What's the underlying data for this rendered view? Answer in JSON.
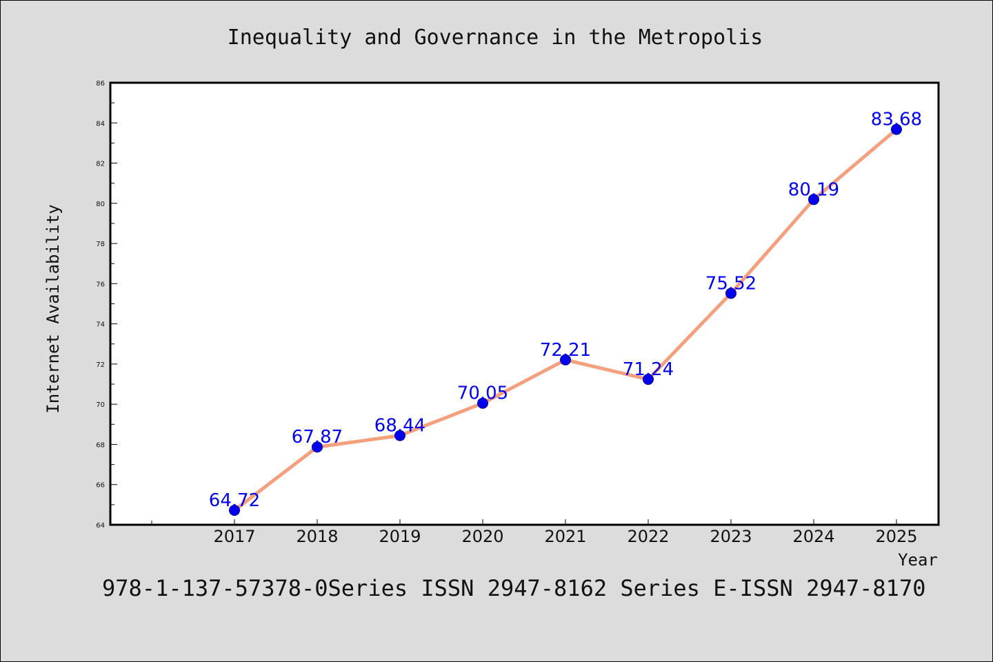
{
  "chart_data": {
    "type": "line",
    "title": "Inequality and Governance in the Metropolis",
    "xlabel": "Year",
    "ylabel": "Internet Availability",
    "categories": [
      "2017",
      "2018",
      "2019",
      "2020",
      "2021",
      "2022",
      "2023",
      "2024",
      "2025"
    ],
    "series": [
      {
        "values": [
          64.72,
          67.87,
          68.44,
          70.05,
          72.21,
          71.24,
          75.52,
          80.19,
          83.68
        ]
      }
    ],
    "data_labels": [
      "64.72",
      "67.87",
      "68.44",
      "70.05",
      "72.21",
      "71.24",
      "75.52",
      "80.19",
      "83.68"
    ],
    "ylim": [
      64,
      86
    ],
    "yticks": [
      64,
      66,
      68,
      70,
      72,
      74,
      76,
      78,
      80,
      82,
      84,
      86
    ],
    "grid": false,
    "line_color": "#f4a07f",
    "marker_color": "#0000ee",
    "label_color": "#0000ee"
  },
  "footer": {
    "text": "978-1-137-57378-0Series ISSN 2947-8162 Series E-ISSN 2947-8170"
  }
}
